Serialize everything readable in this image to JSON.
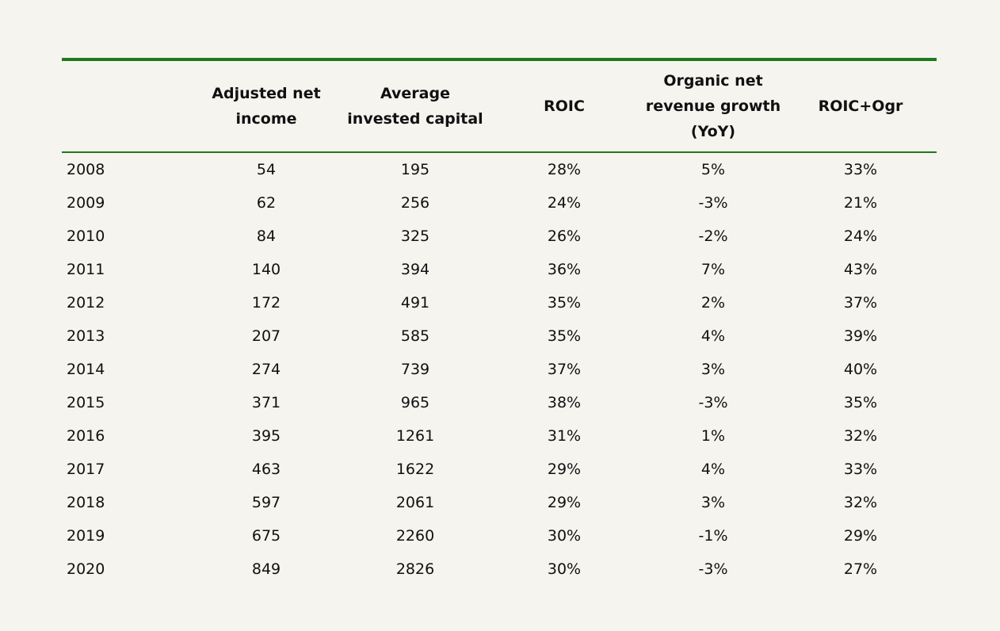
{
  "table": {
    "columns": [
      "",
      "Adjusted net\nincome",
      "Average\ninvested capital",
      "ROIC",
      "Organic net\nrevenue growth\n(YoY)",
      "ROIC+Ogr"
    ],
    "rows": [
      [
        "2008",
        "54",
        "195",
        "28%",
        "5%",
        "33%"
      ],
      [
        "2009",
        "62",
        "256",
        "24%",
        "-3%",
        "21%"
      ],
      [
        "2010",
        "84",
        "325",
        "26%",
        "-2%",
        "24%"
      ],
      [
        "2011",
        "140",
        "394",
        "36%",
        "7%",
        "43%"
      ],
      [
        "2012",
        "172",
        "491",
        "35%",
        "2%",
        "37%"
      ],
      [
        "2013",
        "207",
        "585",
        "35%",
        "4%",
        "39%"
      ],
      [
        "2014",
        "274",
        "739",
        "37%",
        "3%",
        "40%"
      ],
      [
        "2015",
        "371",
        "965",
        "38%",
        "-3%",
        "35%"
      ],
      [
        "2016",
        "395",
        "1261",
        "31%",
        "1%",
        "32%"
      ],
      [
        "2017",
        "463",
        "1622",
        "29%",
        "4%",
        "33%"
      ],
      [
        "2018",
        "597",
        "2061",
        "29%",
        "3%",
        "32%"
      ],
      [
        "2019",
        "675",
        "2260",
        "30%",
        "-1%",
        "29%"
      ],
      [
        "2020",
        "849",
        "2826",
        "30%",
        "-3%",
        "27%"
      ]
    ]
  },
  "colors": {
    "rule": "#1e7a1e",
    "background": "#f5f4ef"
  }
}
